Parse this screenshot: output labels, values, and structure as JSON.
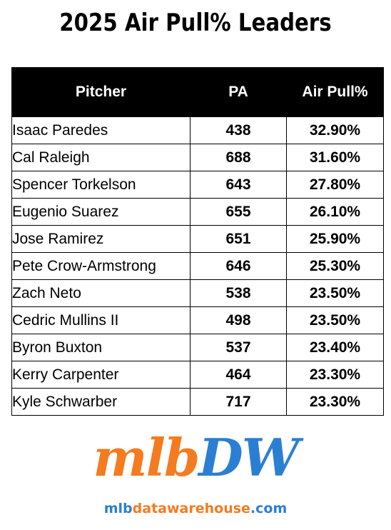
{
  "title": "2025 Air Pull% Leaders",
  "colors": {
    "header_bg": "#000000",
    "logo_orange": "#f47b20",
    "logo_blue": "#2b7fd3"
  },
  "chart_data": {
    "type": "table",
    "title": "2025 Air Pull% Leaders",
    "columns": [
      "Pitcher",
      "PA",
      "Air Pull%"
    ],
    "rows": [
      [
        "Isaac Paredes",
        "438",
        "32.90%"
      ],
      [
        "Cal Raleigh",
        "688",
        "31.60%"
      ],
      [
        "Spencer Torkelson",
        "643",
        "27.80%"
      ],
      [
        "Eugenio Suarez",
        "655",
        "26.10%"
      ],
      [
        "Jose Ramirez",
        "651",
        "25.90%"
      ],
      [
        "Pete Crow-Armstrong",
        "646",
        "25.30%"
      ],
      [
        "Zach Neto",
        "538",
        "23.50%"
      ],
      [
        "Cedric Mullins II",
        "498",
        "23.50%"
      ],
      [
        "Byron Buxton",
        "537",
        "23.40%"
      ],
      [
        "Kerry Carpenter",
        "464",
        "23.30%"
      ],
      [
        "Kyle Schwarber",
        "717",
        "23.30%"
      ]
    ]
  },
  "logo": {
    "part1": "mlb",
    "part2": "DW"
  },
  "url": {
    "part1": "mlb",
    "part2": "datawarehouse",
    "part3": ".com"
  }
}
